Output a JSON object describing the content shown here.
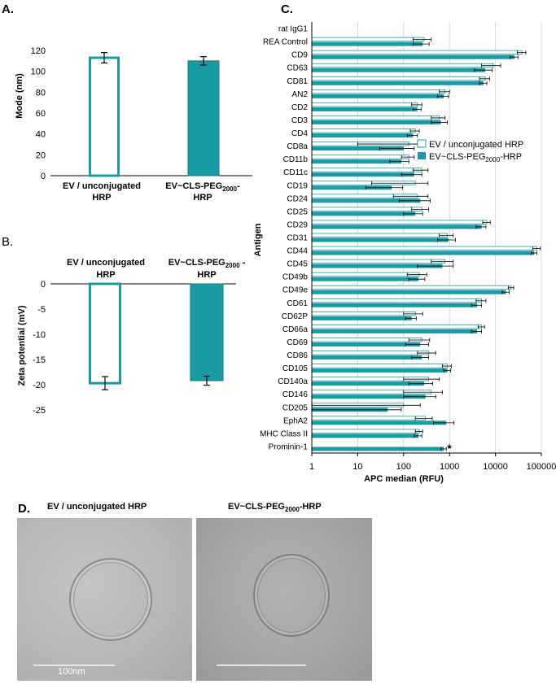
{
  "colors": {
    "teal": "#1a9ba3",
    "teal_dark": "#137a80",
    "white": "#ffffff",
    "axis": "#000000",
    "grid": "#cfcfcf",
    "em_bg": "#bcbcbc",
    "em_bg2": "#a9a9a9"
  },
  "panel_labels": {
    "a": "A.",
    "b": "B.",
    "c": "C.",
    "d": "D."
  },
  "chart_data": [
    {
      "id": "panel-a",
      "type": "bar",
      "ylabel": "Mode  (nm)",
      "ylim": [
        0,
        120
      ],
      "yticks": [
        0,
        20,
        40,
        60,
        80,
        100,
        120
      ],
      "categories": [
        {
          "line1": "EV / unconjugated",
          "line2": "HRP"
        },
        {
          "line1": "EV~CLS-PEG",
          "sub": "2000",
          "tail": "-",
          "line2": "HRP"
        }
      ],
      "values": [
        113,
        110
      ],
      "errors": [
        5,
        4
      ]
    },
    {
      "id": "panel-b",
      "type": "bar",
      "ylabel": "Zeta potential (mV)",
      "ylim": [
        -25,
        0
      ],
      "yticks": [
        0,
        -5,
        -10,
        -15,
        -20,
        -25
      ],
      "categories": [
        {
          "line1": "EV / unconjugated",
          "line2": "HRP"
        },
        {
          "line1": "EV~CLS-PEG",
          "sub": "2000",
          "tail": " -",
          "line2": "HRP"
        }
      ],
      "values": [
        -19.7,
        -19.2
      ],
      "errors": [
        1.3,
        0.9
      ]
    },
    {
      "id": "panel-c",
      "type": "bar",
      "orientation": "horizontal",
      "xscale": "log",
      "xlabel": "APC median (RFU)",
      "ylabel": "Antigen",
      "xlim": [
        1,
        100000
      ],
      "xticks": [
        {
          "v": 1,
          "label": "1"
        },
        {
          "v": 10,
          "label": "10"
        },
        {
          "v": 100,
          "label": "100"
        },
        {
          "v": 1000,
          "label": "1000"
        },
        {
          "v": 10000,
          "label": "10000"
        },
        {
          "v": 100000,
          "label": "100000"
        }
      ],
      "legend": [
        {
          "label": "EV / unconjugated HRP",
          "style": "outline"
        },
        {
          "label": "EV~CLS-PEG",
          "sub": "2000",
          "tail": "-HRP",
          "style": "filled"
        }
      ],
      "annotation": "*",
      "antigens": [
        "rat IgG1",
        "REA Control",
        "CD9",
        "CD63",
        "CD81",
        "AN2",
        "CD2",
        "CD3",
        "CD4",
        "CD8a",
        "CD11b",
        "CD11c",
        "CD19",
        "CD24",
        "CD25",
        "CD29",
        "CD31",
        "CD44",
        "CD45",
        "CD49b",
        "CD49e",
        "CD61",
        "CD62P",
        "CD66a",
        "CD69",
        "CD86",
        "CD105",
        "CD140a",
        "CD146",
        "CD205",
        "EphA2",
        "MHC Class II",
        "Prominin-1"
      ],
      "series": [
        {
          "name": "EV / unconjugated HRP",
          "values": [
            null,
            280,
            38000,
            9000,
            6000,
            800,
            200,
            600,
            180,
            130,
            130,
            250,
            180,
            200,
            250,
            6500,
            900,
            80000,
            800,
            220,
            22000,
            5000,
            180,
            5000,
            250,
            350,
            900,
            350,
            400,
            100,
            300,
            220,
            null
          ],
          "errors": [
            0,
            120,
            8000,
            4000,
            1500,
            200,
            50,
            200,
            40,
            120,
            40,
            90,
            160,
            140,
            100,
            1200,
            300,
            15000,
            400,
            100,
            3000,
            1200,
            80,
            800,
            120,
            150,
            200,
            250,
            300,
            130,
            120,
            40,
            0
          ]
        },
        {
          "name": "EV~CLS-PEG2000-HRP",
          "values": [
            null,
            260,
            26000,
            6000,
            5500,
            750,
            200,
            650,
            160,
            100,
            90,
            170,
            55,
            230,
            180,
            5000,
            950,
            70000,
            700,
            210,
            17000,
            4000,
            150,
            4000,
            230,
            250,
            900,
            280,
            300,
            45,
            850,
            210,
            750
          ],
          "errors": [
            0,
            100,
            5000,
            2500,
            1000,
            200,
            40,
            250,
            40,
            70,
            40,
            80,
            40,
            150,
            80,
            1200,
            400,
            10000,
            500,
            80,
            3000,
            1000,
            40,
            1000,
            120,
            100,
            150,
            150,
            200,
            44,
            400,
            40,
            100
          ]
        }
      ]
    }
  ],
  "panel_d": {
    "left_title": "EV / unconjugated HRP",
    "right_title_pre": "EV~CLS-PEG",
    "right_title_sub": "2000",
    "right_title_post": "-HRP",
    "scale_label": "100nm"
  }
}
